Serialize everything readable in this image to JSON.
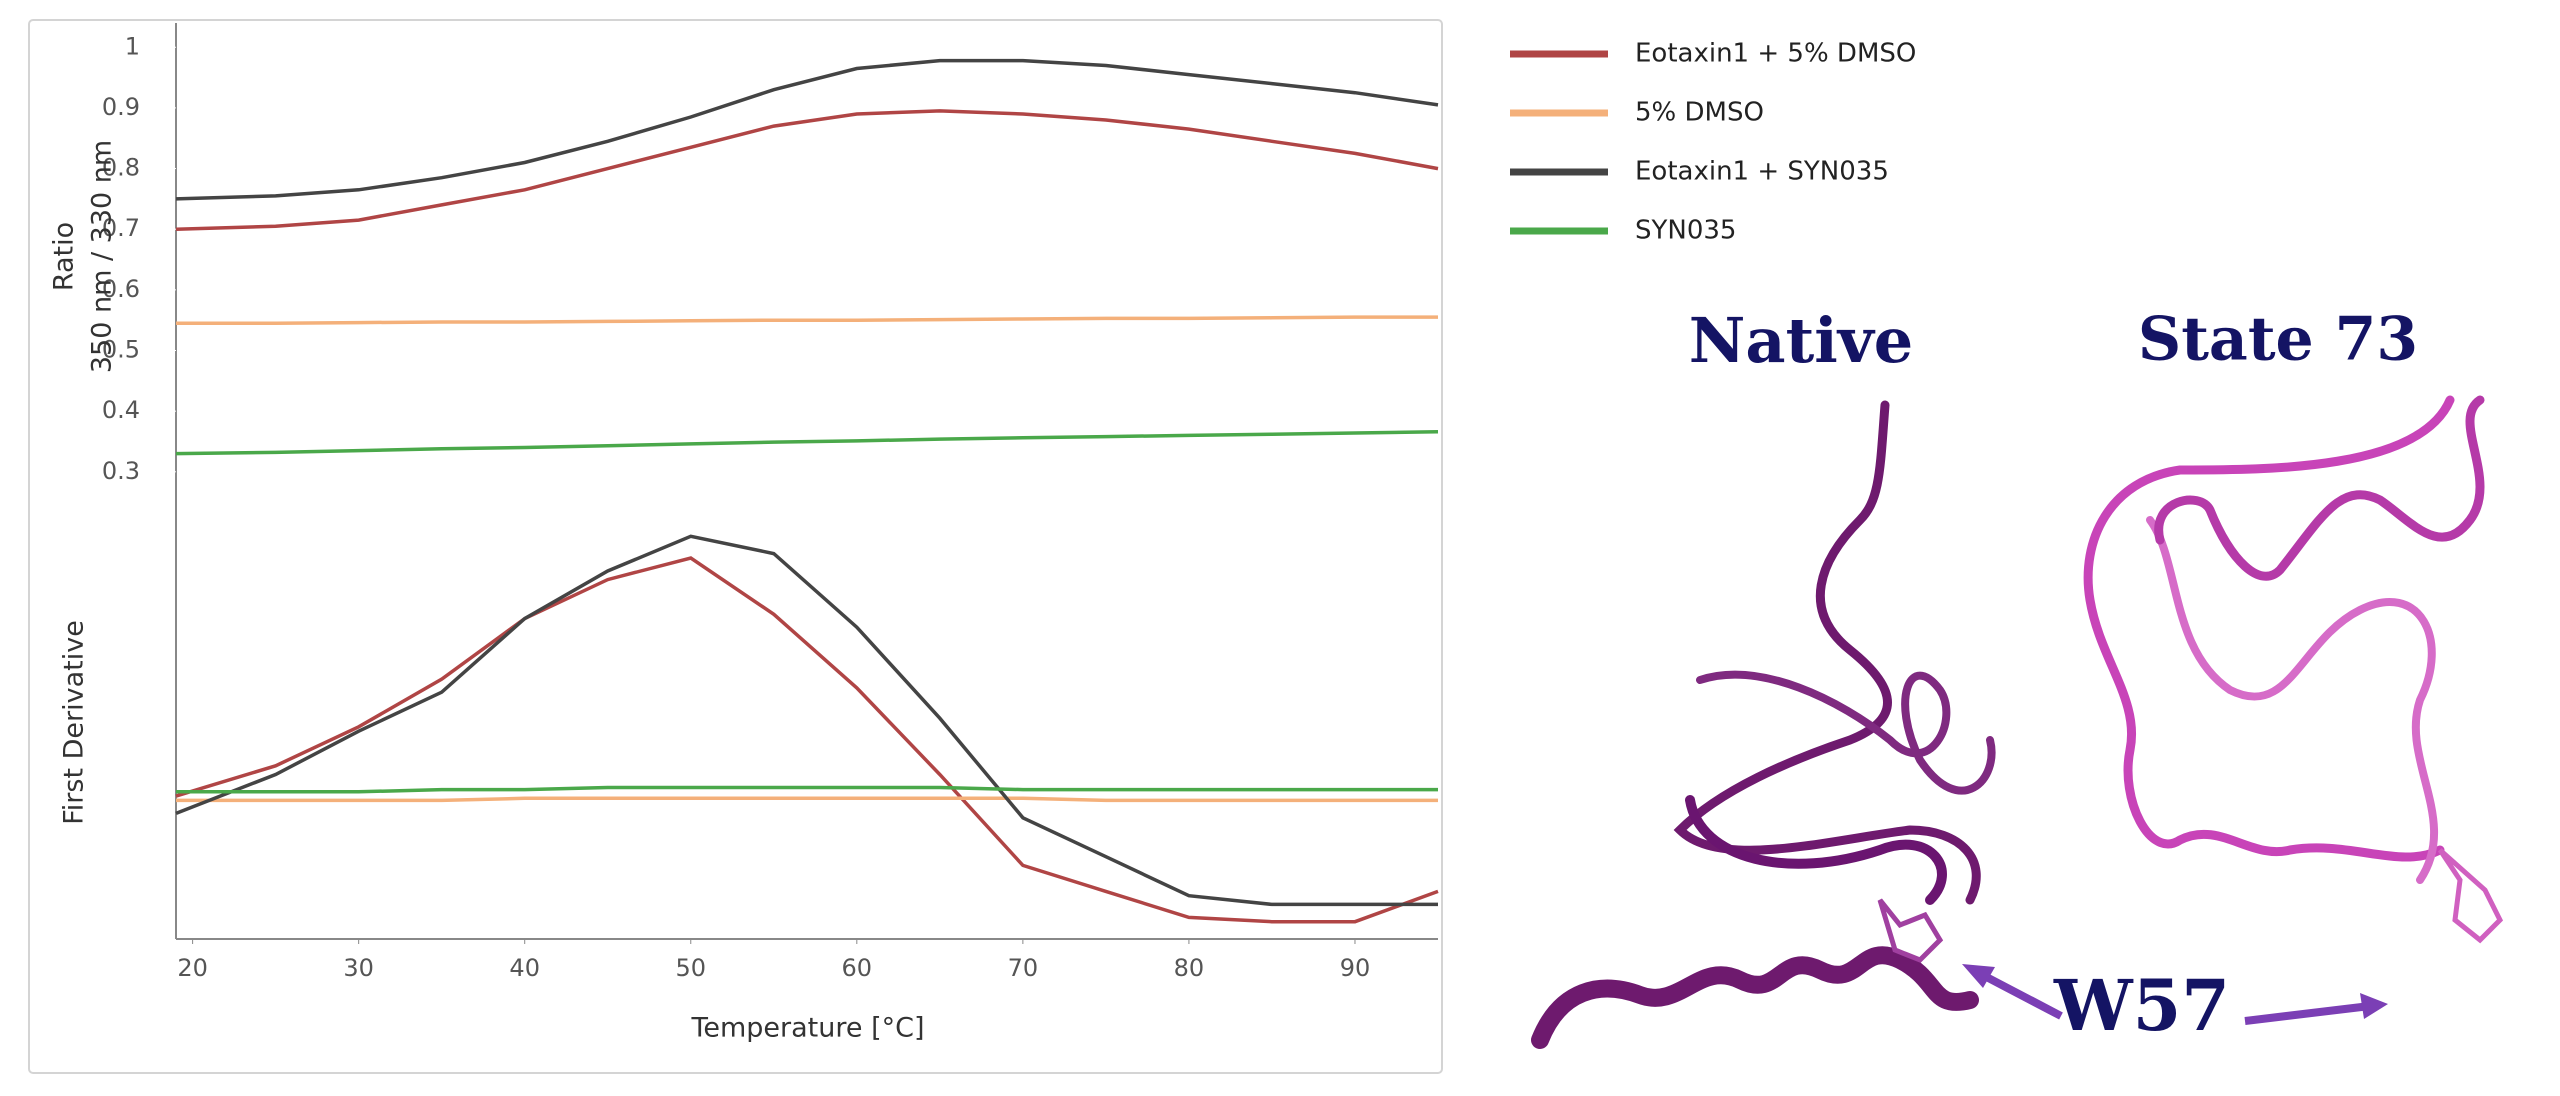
{
  "chart_data": [
    {
      "type": "line",
      "ylabel": [
        "Ratio",
        "350 nm / 330 nm"
      ],
      "x": [
        19,
        25,
        30,
        35,
        40,
        45,
        50,
        55,
        60,
        65,
        70,
        75,
        80,
        85,
        90,
        95
      ],
      "xlim": [
        19,
        95
      ],
      "ylim": [
        0.27,
        1.04
      ],
      "yticks": [
        {
          "value": 1,
          "label": "1"
        },
        0.9,
        0.8,
        0.7,
        0.6,
        0.5,
        0.4,
        0.3
      ],
      "series": [
        {
          "name": "Eotaxin1 + 5% DMSO",
          "color": "#b04545",
          "values": [
            0.7,
            0.705,
            0.715,
            0.74,
            0.765,
            0.8,
            0.835,
            0.87,
            0.89,
            0.895,
            0.89,
            0.88,
            0.865,
            0.845,
            0.825,
            0.8
          ]
        },
        {
          "name": "5% DMSO",
          "color": "#f4b07a",
          "values": [
            0.545,
            0.545,
            0.546,
            0.547,
            0.547,
            0.548,
            0.549,
            0.55,
            0.55,
            0.551,
            0.552,
            0.553,
            0.553,
            0.554,
            0.555,
            0.555
          ]
        },
        {
          "name": "Eotaxin1 + SYN035",
          "color": "#444444",
          "values": [
            0.75,
            0.755,
            0.765,
            0.785,
            0.81,
            0.845,
            0.885,
            0.93,
            0.965,
            0.978,
            0.978,
            0.97,
            0.955,
            0.94,
            0.925,
            0.905
          ]
        },
        {
          "name": "SYN035",
          "color": "#4aa84a",
          "values": [
            0.33,
            0.332,
            0.335,
            0.338,
            0.34,
            0.343,
            0.346,
            0.349,
            0.351,
            0.354,
            0.356,
            0.358,
            0.36,
            0.362,
            0.364,
            0.366
          ]
        }
      ]
    },
    {
      "type": "line",
      "ylabel": [
        "First Derivative"
      ],
      "xlabel": "Temperature [°C]",
      "x": [
        19,
        25,
        30,
        35,
        40,
        45,
        50,
        55,
        60,
        65,
        70,
        75,
        80,
        85,
        90,
        95
      ],
      "xlim": [
        19,
        95
      ],
      "xticks": [
        20,
        30,
        40,
        50,
        60,
        70,
        80,
        90
      ],
      "ylim": [
        0,
        100
      ],
      "series": [
        {
          "color": "#b04545",
          "values": [
            33,
            40,
            49,
            60,
            74,
            83,
            88,
            75,
            58,
            38,
            17,
            11,
            5,
            4,
            4,
            11
          ]
        },
        {
          "color": "#f4b07a",
          "values": [
            32,
            32,
            32,
            32,
            32.5,
            32.5,
            32.5,
            32.5,
            32.5,
            32.5,
            32.5,
            32,
            32,
            32,
            32,
            32
          ]
        },
        {
          "color": "#444444",
          "values": [
            29,
            38,
            48,
            57,
            74,
            85,
            93,
            89,
            72,
            51,
            28,
            19,
            10,
            8,
            8,
            8
          ]
        },
        {
          "color": "#4aa84a",
          "values": [
            34,
            34,
            34,
            34.5,
            34.5,
            35,
            35,
            35,
            35,
            35,
            34.5,
            34.5,
            34.5,
            34.5,
            34.5,
            34.5
          ]
        }
      ]
    }
  ],
  "structures": {
    "native": "Native",
    "state": "State 73",
    "residue": "W57"
  }
}
